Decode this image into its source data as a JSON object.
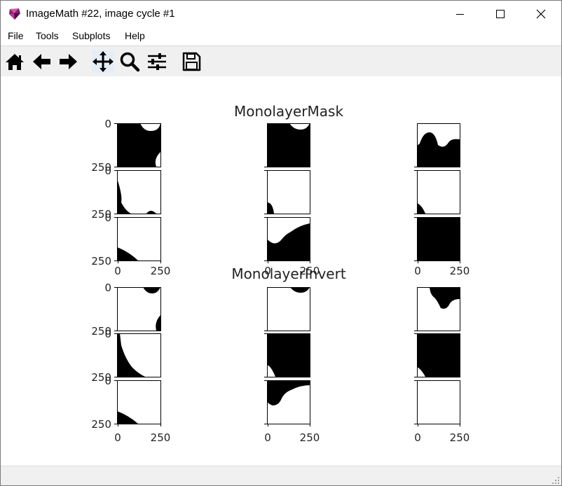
{
  "window": {
    "title": "ImageMath #22, image cycle #1",
    "controls": [
      "minimize-icon",
      "maximize-icon",
      "close-icon"
    ]
  },
  "menu": {
    "items": [
      {
        "label": "File"
      },
      {
        "label": "Tools"
      },
      {
        "label": "Subplots"
      },
      {
        "label": "Help"
      }
    ]
  },
  "toolbar": {
    "buttons": [
      {
        "icon": "home-icon"
      },
      {
        "icon": "back-arrow-icon"
      },
      {
        "icon": "forward-arrow-icon"
      },
      {
        "icon": "pan-icon",
        "active": true
      },
      {
        "icon": "zoom-icon"
      },
      {
        "icon": "configure-subplots-icon"
      },
      {
        "icon": "save-icon"
      }
    ]
  },
  "figure": {
    "groups": [
      {
        "title": "MonolayerMask"
      },
      {
        "title": "MonolayerInvert"
      }
    ],
    "ytick_labels": [
      "0",
      "250"
    ],
    "xtick_labels": [
      "0",
      "250"
    ]
  }
}
